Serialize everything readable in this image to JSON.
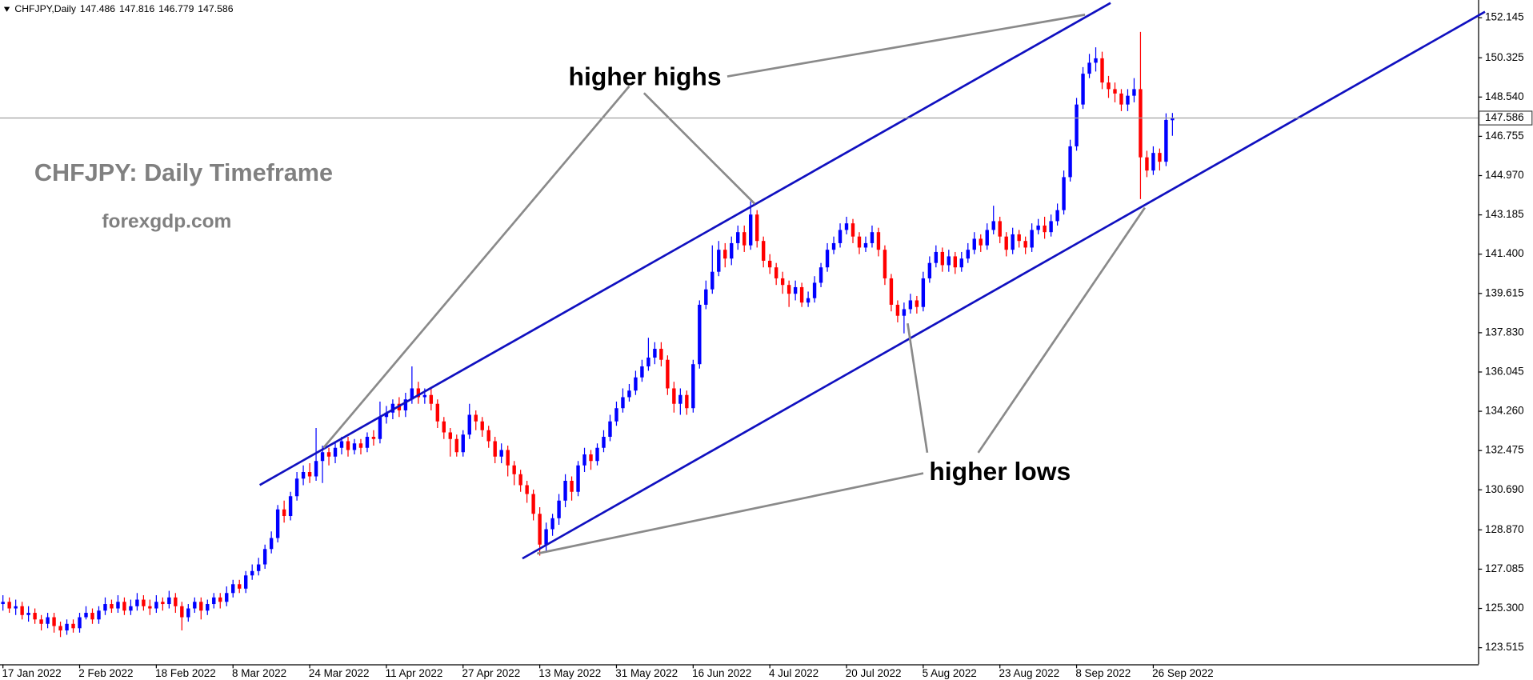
{
  "chart_data": {
    "type": "candlestick",
    "symbol": "CHFJPY,Daily",
    "annotations": {
      "title": "CHFJPY: Daily Timeframe",
      "source": "forexgdp.com",
      "highs": "higher highs",
      "lows": "higher lows"
    },
    "up_color": "#0000ff",
    "down_color": "#ff0000",
    "ylim": [
      122.76,
      152.95
    ],
    "yticks": [
      152.145,
      150.325,
      {
        "value": 148.54,
        "label": "148.540"
      },
      146.755,
      {
        "value": 144.97,
        "label": "144.970"
      },
      143.185,
      {
        "value": 141.4,
        "label": "141.400"
      },
      139.615,
      {
        "value": 137.83,
        "label": "137.830"
      },
      136.045,
      {
        "value": 134.26,
        "label": "134.260"
      },
      132.475,
      {
        "value": 130.69,
        "label": "130.690"
      },
      {
        "value": 128.87,
        "label": "128.870"
      },
      127.085,
      {
        "value": 125.3,
        "label": "125.300"
      },
      123.515
    ],
    "categories": [
      "17 Jan 2022",
      null,
      null,
      null,
      null,
      null,
      null,
      null,
      null,
      null,
      null,
      null,
      "2 Feb 2022",
      null,
      null,
      null,
      null,
      null,
      null,
      null,
      null,
      null,
      null,
      null,
      "18 Feb 2022",
      null,
      null,
      null,
      null,
      null,
      null,
      null,
      null,
      null,
      null,
      null,
      "8 Mar 2022",
      null,
      null,
      null,
      null,
      null,
      null,
      null,
      null,
      null,
      null,
      null,
      "24 Mar 2022",
      null,
      null,
      null,
      null,
      null,
      null,
      null,
      null,
      null,
      null,
      null,
      "11 Apr 2022",
      null,
      null,
      null,
      null,
      null,
      null,
      null,
      null,
      null,
      null,
      null,
      "27 Apr 2022",
      null,
      null,
      null,
      null,
      null,
      null,
      null,
      null,
      null,
      null,
      null,
      "13 May 2022",
      null,
      null,
      null,
      null,
      null,
      null,
      null,
      null,
      null,
      null,
      null,
      "31 May 2022",
      null,
      null,
      null,
      null,
      null,
      null,
      null,
      null,
      null,
      null,
      null,
      "16 Jun 2022",
      null,
      null,
      null,
      null,
      null,
      null,
      null,
      null,
      null,
      null,
      null,
      "4 Jul 2022",
      null,
      null,
      null,
      null,
      null,
      null,
      null,
      null,
      null,
      null,
      null,
      "20 Jul 2022",
      null,
      null,
      null,
      null,
      null,
      null,
      null,
      null,
      null,
      null,
      null,
      "5 Aug 2022",
      null,
      null,
      null,
      null,
      null,
      null,
      null,
      null,
      null,
      null,
      null,
      "23 Aug 2022",
      null,
      null,
      null,
      null,
      null,
      null,
      null,
      null,
      null,
      null,
      null,
      "8 Sep 2022",
      null,
      null,
      null,
      null,
      null,
      null,
      null,
      null,
      null,
      null,
      null,
      "26 Sep 2022",
      null,
      null,
      null
    ],
    "ohlc": [
      [
        125.5,
        125.9,
        125.2,
        125.6
      ],
      [
        125.6,
        125.8,
        125.1,
        125.3
      ],
      [
        125.3,
        125.7,
        125.0,
        125.4
      ],
      [
        125.4,
        125.6,
        124.8,
        125.0
      ],
      [
        125.0,
        125.4,
        124.7,
        125.1
      ],
      [
        125.1,
        125.3,
        124.6,
        124.8
      ],
      [
        124.8,
        125.0,
        124.3,
        124.6
      ],
      [
        124.6,
        125.1,
        124.4,
        124.9
      ],
      [
        124.9,
        125.1,
        124.2,
        124.5
      ],
      [
        124.5,
        124.7,
        124.0,
        124.3
      ],
      [
        124.3,
        124.8,
        124.1,
        124.6
      ],
      [
        124.6,
        124.8,
        124.2,
        124.4
      ],
      [
        124.4,
        125.1,
        124.2,
        124.9
      ],
      [
        124.9,
        125.4,
        124.8,
        125.1
      ],
      [
        125.1,
        125.3,
        124.6,
        124.8
      ],
      [
        124.8,
        125.4,
        124.6,
        125.2
      ],
      [
        125.2,
        125.8,
        125.0,
        125.5
      ],
      [
        125.5,
        125.7,
        125.1,
        125.3
      ],
      [
        125.3,
        125.9,
        125.1,
        125.6
      ],
      [
        125.6,
        125.8,
        125.0,
        125.2
      ],
      [
        125.2,
        125.7,
        125.0,
        125.4
      ],
      [
        125.4,
        126.0,
        125.2,
        125.7
      ],
      [
        125.7,
        125.9,
        125.2,
        125.4
      ],
      [
        125.4,
        125.7,
        125.0,
        125.3
      ],
      [
        125.3,
        125.9,
        125.1,
        125.6
      ],
      [
        125.6,
        125.8,
        125.2,
        125.5
      ],
      [
        125.5,
        126.1,
        125.3,
        125.8
      ],
      [
        125.8,
        126.0,
        125.1,
        125.4
      ],
      [
        125.4,
        125.6,
        124.3,
        124.9
      ],
      [
        124.9,
        125.5,
        124.7,
        125.3
      ],
      [
        125.3,
        125.8,
        125.1,
        125.6
      ],
      [
        125.6,
        125.8,
        124.8,
        125.2
      ],
      [
        125.2,
        125.7,
        125.0,
        125.5
      ],
      [
        125.5,
        126.0,
        125.3,
        125.8
      ],
      [
        125.8,
        126.0,
        125.3,
        125.6
      ],
      [
        125.6,
        126.3,
        125.4,
        126.0
      ],
      [
        126.0,
        126.6,
        125.8,
        126.4
      ],
      [
        126.4,
        126.6,
        126.0,
        126.2
      ],
      [
        126.2,
        127.0,
        126.0,
        126.8
      ],
      [
        126.8,
        127.3,
        126.6,
        127.0
      ],
      [
        127.0,
        127.6,
        126.8,
        127.3
      ],
      [
        127.3,
        128.2,
        127.1,
        128.0
      ],
      [
        128.0,
        128.8,
        127.8,
        128.5
      ],
      [
        128.5,
        130.0,
        128.3,
        129.8
      ],
      [
        129.8,
        130.2,
        129.2,
        129.5
      ],
      [
        129.5,
        130.6,
        129.3,
        130.4
      ],
      [
        130.4,
        131.5,
        130.2,
        131.2
      ],
      [
        131.2,
        131.8,
        130.9,
        131.5
      ],
      [
        131.5,
        131.9,
        131.0,
        131.3
      ],
      [
        131.3,
        133.5,
        131.1,
        132.0
      ],
      [
        132.0,
        132.7,
        131.0,
        132.4
      ],
      [
        132.4,
        132.6,
        131.8,
        132.2
      ],
      [
        132.2,
        132.9,
        131.9,
        132.6
      ],
      [
        132.6,
        133.1,
        132.3,
        132.9
      ],
      [
        132.9,
        133.1,
        132.2,
        132.5
      ],
      [
        132.5,
        133.0,
        132.3,
        132.8
      ],
      [
        132.8,
        133.0,
        132.3,
        132.6
      ],
      [
        132.6,
        133.3,
        132.4,
        133.1
      ],
      [
        133.1,
        133.4,
        132.7,
        133.0
      ],
      [
        133.0,
        134.7,
        132.8,
        134.0
      ],
      [
        134.0,
        134.5,
        133.7,
        134.2
      ],
      [
        134.2,
        134.8,
        133.9,
        134.6
      ],
      [
        134.6,
        134.9,
        134.0,
        134.3
      ],
      [
        134.3,
        135.1,
        134.0,
        134.8
      ],
      [
        134.8,
        136.3,
        134.6,
        135.3
      ],
      [
        135.3,
        135.6,
        134.6,
        134.9
      ],
      [
        134.9,
        135.3,
        134.6,
        135.0
      ],
      [
        135.0,
        135.3,
        134.3,
        134.6
      ],
      [
        134.6,
        134.8,
        133.5,
        133.8
      ],
      [
        133.8,
        134.0,
        133.0,
        133.3
      ],
      [
        133.3,
        133.5,
        132.2,
        133.0
      ],
      [
        133.0,
        133.2,
        132.2,
        132.4
      ],
      [
        132.4,
        133.4,
        132.2,
        133.2
      ],
      [
        133.2,
        134.6,
        133.0,
        134.1
      ],
      [
        134.1,
        134.3,
        133.4,
        133.8
      ],
      [
        133.8,
        134.0,
        133.1,
        133.4
      ],
      [
        133.4,
        133.6,
        132.6,
        132.9
      ],
      [
        132.9,
        133.1,
        131.9,
        132.2
      ],
      [
        132.2,
        132.8,
        131.9,
        132.5
      ],
      [
        132.5,
        132.7,
        131.3,
        131.8
      ],
      [
        131.8,
        132.0,
        130.9,
        131.4
      ],
      [
        131.4,
        131.6,
        130.6,
        130.9
      ],
      [
        130.9,
        131.1,
        130.1,
        130.5
      ],
      [
        130.5,
        130.7,
        129.3,
        129.6
      ],
      [
        129.6,
        129.9,
        127.7,
        128.2
      ],
      [
        128.2,
        129.2,
        127.9,
        128.9
      ],
      [
        128.9,
        129.6,
        128.6,
        129.4
      ],
      [
        129.4,
        130.5,
        129.1,
        130.2
      ],
      [
        130.2,
        131.4,
        129.9,
        131.1
      ],
      [
        131.1,
        131.3,
        130.2,
        130.6
      ],
      [
        130.6,
        132.0,
        130.4,
        131.8
      ],
      [
        131.8,
        132.6,
        131.5,
        132.3
      ],
      [
        132.3,
        132.5,
        131.6,
        132.0
      ],
      [
        132.0,
        132.8,
        131.8,
        132.6
      ],
      [
        132.6,
        133.4,
        132.4,
        133.1
      ],
      [
        133.1,
        134.1,
        132.9,
        133.8
      ],
      [
        133.8,
        134.7,
        133.6,
        134.4
      ],
      [
        134.4,
        135.3,
        134.2,
        134.9
      ],
      [
        134.9,
        135.5,
        134.7,
        135.2
      ],
      [
        135.2,
        136.1,
        135.0,
        135.8
      ],
      [
        135.8,
        136.6,
        135.6,
        136.3
      ],
      [
        136.3,
        137.6,
        136.1,
        136.7
      ],
      [
        136.7,
        137.4,
        136.4,
        137.1
      ],
      [
        137.1,
        137.4,
        136.3,
        136.6
      ],
      [
        136.6,
        136.8,
        135.0,
        135.3
      ],
      [
        135.3,
        135.6,
        134.2,
        134.6
      ],
      [
        134.6,
        135.3,
        134.1,
        135.0
      ],
      [
        135.0,
        135.2,
        134.1,
        134.4
      ],
      [
        134.4,
        136.6,
        134.2,
        136.4
      ],
      [
        136.4,
        139.3,
        136.2,
        139.1
      ],
      [
        139.1,
        140.2,
        138.9,
        139.8
      ],
      [
        139.8,
        141.8,
        139.6,
        140.6
      ],
      [
        140.6,
        142.0,
        140.4,
        141.6
      ],
      [
        141.6,
        141.9,
        140.8,
        141.2
      ],
      [
        141.2,
        142.2,
        140.9,
        141.9
      ],
      [
        141.9,
        142.7,
        141.6,
        142.4
      ],
      [
        142.4,
        142.7,
        141.5,
        141.8
      ],
      [
        141.8,
        143.8,
        141.6,
        143.2
      ],
      [
        143.2,
        143.4,
        141.7,
        142.0
      ],
      [
        142.0,
        142.2,
        140.8,
        141.1
      ],
      [
        141.1,
        141.4,
        140.5,
        140.8
      ],
      [
        140.8,
        141.0,
        140.0,
        140.3
      ],
      [
        140.3,
        140.6,
        139.6,
        140.0
      ],
      [
        140.0,
        140.2,
        139.0,
        139.6
      ],
      [
        139.6,
        140.2,
        139.3,
        139.9
      ],
      [
        139.9,
        140.1,
        139.0,
        139.2
      ],
      [
        139.2,
        139.7,
        139.0,
        139.4
      ],
      [
        139.4,
        140.4,
        139.2,
        140.1
      ],
      [
        140.1,
        141.0,
        139.9,
        140.8
      ],
      [
        140.8,
        141.9,
        140.6,
        141.6
      ],
      [
        141.6,
        142.2,
        141.4,
        141.9
      ],
      [
        141.9,
        142.8,
        141.7,
        142.5
      ],
      [
        142.5,
        143.1,
        142.3,
        142.8
      ],
      [
        142.8,
        143.0,
        141.9,
        142.2
      ],
      [
        142.2,
        142.4,
        141.4,
        141.7
      ],
      [
        141.7,
        142.2,
        141.5,
        141.9
      ],
      [
        141.9,
        142.7,
        141.7,
        142.4
      ],
      [
        142.4,
        142.6,
        141.3,
        141.6
      ],
      [
        141.6,
        141.8,
        140.0,
        140.3
      ],
      [
        140.3,
        140.5,
        138.8,
        139.1
      ],
      [
        139.1,
        139.3,
        138.3,
        138.6
      ],
      [
        138.6,
        139.2,
        137.8,
        138.9
      ],
      [
        138.9,
        139.6,
        138.7,
        139.3
      ],
      [
        139.3,
        139.5,
        138.7,
        139.0
      ],
      [
        139.0,
        140.6,
        138.8,
        140.3
      ],
      [
        140.3,
        141.3,
        140.1,
        141.0
      ],
      [
        141.0,
        141.8,
        140.8,
        141.5
      ],
      [
        141.5,
        141.7,
        140.6,
        140.9
      ],
      [
        140.9,
        141.6,
        140.6,
        141.3
      ],
      [
        141.3,
        141.5,
        140.5,
        140.8
      ],
      [
        140.8,
        141.5,
        140.6,
        141.2
      ],
      [
        141.2,
        141.9,
        141.0,
        141.6
      ],
      [
        141.6,
        142.4,
        141.4,
        142.1
      ],
      [
        142.1,
        142.3,
        141.5,
        141.8
      ],
      [
        141.8,
        142.8,
        141.6,
        142.5
      ],
      [
        142.5,
        143.6,
        142.3,
        142.9
      ],
      [
        142.9,
        143.1,
        141.9,
        142.2
      ],
      [
        142.2,
        142.4,
        141.3,
        141.6
      ],
      [
        141.6,
        142.6,
        141.4,
        142.3
      ],
      [
        142.3,
        142.5,
        141.7,
        142.0
      ],
      [
        142.0,
        142.2,
        141.4,
        141.7
      ],
      [
        141.7,
        142.8,
        141.5,
        142.5
      ],
      [
        142.5,
        143.0,
        142.3,
        142.7
      ],
      [
        142.7,
        143.1,
        142.1,
        142.4
      ],
      [
        142.4,
        143.2,
        142.2,
        142.9
      ],
      [
        142.9,
        143.7,
        142.7,
        143.4
      ],
      [
        143.4,
        145.2,
        143.2,
        144.9
      ],
      [
        144.9,
        146.6,
        144.7,
        146.3
      ],
      [
        146.3,
        148.5,
        146.1,
        148.2
      ],
      [
        148.2,
        149.9,
        148.0,
        149.6
      ],
      [
        149.6,
        150.5,
        149.4,
        150.1
      ],
      [
        150.1,
        150.8,
        149.7,
        150.3
      ],
      [
        150.3,
        150.6,
        148.9,
        149.2
      ],
      [
        149.2,
        149.5,
        148.5,
        148.9
      ],
      [
        148.9,
        149.2,
        148.3,
        148.7
      ],
      [
        148.7,
        148.9,
        147.9,
        148.2
      ],
      [
        148.2,
        148.9,
        147.9,
        148.6
      ],
      [
        148.6,
        149.4,
        148.3,
        148.9
      ],
      [
        148.9,
        151.5,
        143.9,
        145.8
      ],
      [
        145.8,
        146.1,
        144.9,
        145.2
      ],
      [
        145.2,
        146.3,
        145.0,
        146.0
      ],
      [
        146.0,
        146.2,
        145.2,
        145.6
      ],
      [
        145.6,
        147.8,
        145.4,
        147.5
      ],
      [
        147.486,
        147.816,
        146.779,
        147.586
      ]
    ]
  }
}
